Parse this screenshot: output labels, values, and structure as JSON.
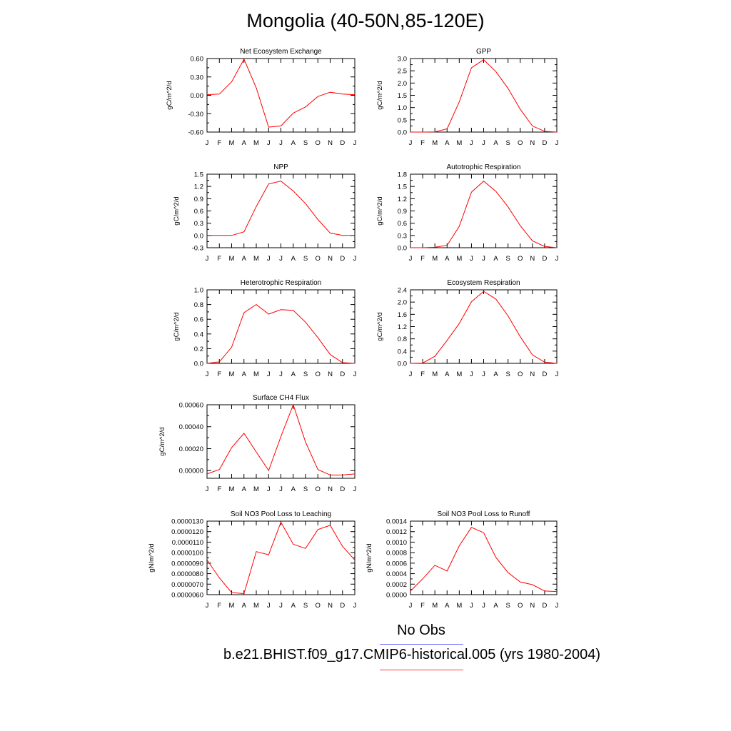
{
  "title": "Mongolia (40-50N,85-120E)",
  "legend": {
    "entries": [
      {
        "label": "No Obs",
        "color": "#6c6cff"
      },
      {
        "label": "b.e21.BHIST.f09_g17.CMIP6-historical.005 (yrs 1980-2004)",
        "color": "#ff4040"
      }
    ]
  },
  "line_color": "#ff0000",
  "months": [
    "J",
    "F",
    "M",
    "A",
    "M",
    "J",
    "J",
    "A",
    "S",
    "O",
    "N",
    "D",
    "J"
  ],
  "chart_data": [
    {
      "type": "line",
      "title": "Net Ecosystem Exchange",
      "ylabel": "gC/m^2/d",
      "ylim": [
        -0.6,
        0.6
      ],
      "yticks": [
        "-0.60",
        "-0.30",
        "0.00",
        "0.30",
        "0.60"
      ],
      "values": [
        0.01,
        0.02,
        0.22,
        0.59,
        0.12,
        -0.52,
        -0.5,
        -0.29,
        -0.19,
        -0.02,
        0.05,
        0.02,
        0.01
      ]
    },
    {
      "type": "line",
      "title": "GPP",
      "ylabel": "gC/m^2/d",
      "ylim": [
        0,
        3.0
      ],
      "yticks": [
        "0.0",
        "0.5",
        "1.0",
        "1.5",
        "2.0",
        "2.5",
        "3.0"
      ],
      "values": [
        0.0,
        0.0,
        0.01,
        0.13,
        1.23,
        2.62,
        2.95,
        2.47,
        1.78,
        0.93,
        0.25,
        0.03,
        0.0
      ]
    },
    {
      "type": "line",
      "title": "NPP",
      "ylabel": "gC/m^2/d",
      "ylim": [
        -0.3,
        1.5
      ],
      "yticks": [
        "-0.3",
        "0.0",
        "0.3",
        "0.6",
        "0.9",
        "1.2",
        "1.5"
      ],
      "values": [
        0.0,
        0.0,
        0.0,
        0.09,
        0.71,
        1.26,
        1.33,
        1.09,
        0.78,
        0.39,
        0.06,
        0.0,
        0.0
      ]
    },
    {
      "type": "line",
      "title": "Autotrophic Respiration",
      "ylabel": "gC/m^2/d",
      "ylim": [
        0,
        1.8
      ],
      "yticks": [
        "0.0",
        "0.3",
        "0.6",
        "0.9",
        "1.2",
        "1.5",
        "1.8"
      ],
      "values": [
        0.0,
        0.0,
        0.01,
        0.06,
        0.52,
        1.36,
        1.63,
        1.38,
        1.0,
        0.54,
        0.17,
        0.03,
        0.0
      ]
    },
    {
      "type": "line",
      "title": "Heterotrophic Respiration",
      "ylabel": "gC/m^2/d",
      "ylim": [
        0,
        1.0
      ],
      "yticks": [
        "0.0",
        "0.2",
        "0.4",
        "0.6",
        "0.8",
        "1.0"
      ],
      "values": [
        0.0,
        0.02,
        0.22,
        0.69,
        0.8,
        0.67,
        0.73,
        0.72,
        0.56,
        0.35,
        0.12,
        0.01,
        0.0
      ]
    },
    {
      "type": "line",
      "title": "Ecosystem Respiration",
      "ylabel": "gC/m^2/d",
      "ylim": [
        0,
        2.4
      ],
      "yticks": [
        "0.0",
        "0.4",
        "0.8",
        "1.2",
        "1.6",
        "2.0",
        "2.4"
      ],
      "values": [
        0.0,
        0.01,
        0.23,
        0.75,
        1.3,
        2.01,
        2.35,
        2.1,
        1.55,
        0.87,
        0.28,
        0.04,
        0.0
      ]
    },
    {
      "type": "line",
      "title": "Surface CH4 Flux",
      "ylabel": "gC/m^2/d",
      "ylim": [
        -7e-05,
        0.0006
      ],
      "yticks": [
        "0.00000",
        "0.00020",
        "0.00040",
        "0.00060"
      ],
      "ytickvals": [
        0,
        0.0002,
        0.0004,
        0.0006
      ],
      "values": [
        -3e-05,
        1e-05,
        0.00021,
        0.00034,
        0.00017,
        0.0,
        0.00031,
        0.0006,
        0.00026,
        1e-05,
        -4e-05,
        -4e-05,
        -3e-05
      ]
    },
    {
      "type": "line",
      "title": "Soil NO3 Pool Loss to Leaching",
      "ylabel": "gN/m^2/d",
      "ylim": [
        6e-06,
        1.3e-05
      ],
      "yticks": [
        "0.0000060",
        "0.0000070",
        "0.0000080",
        "0.0000090",
        "0.0000100",
        "0.0000110",
        "0.0000120",
        "0.0000130"
      ],
      "values": [
        9.3e-06,
        7.6e-06,
        6.2e-06,
        6.1e-06,
        1.01e-05,
        9.8e-06,
        1.29e-05,
        1.08e-05,
        1.04e-05,
        1.22e-05,
        1.26e-05,
        1.06e-05,
        9.3e-06
      ]
    },
    {
      "type": "line",
      "title": "Soil NO3 Pool Loss to Runoff",
      "ylabel": "gN/m^2/d",
      "ylim": [
        0,
        0.0014
      ],
      "yticks": [
        "0.0000",
        "0.0002",
        "0.0004",
        "0.0006",
        "0.0008",
        "0.0010",
        "0.0012",
        "0.0014"
      ],
      "values": [
        7e-05,
        0.0003,
        0.00056,
        0.00045,
        0.00093,
        0.00128,
        0.00118,
        0.00071,
        0.00042,
        0.00024,
        0.00019,
        7e-05,
        6e-05
      ]
    }
  ]
}
